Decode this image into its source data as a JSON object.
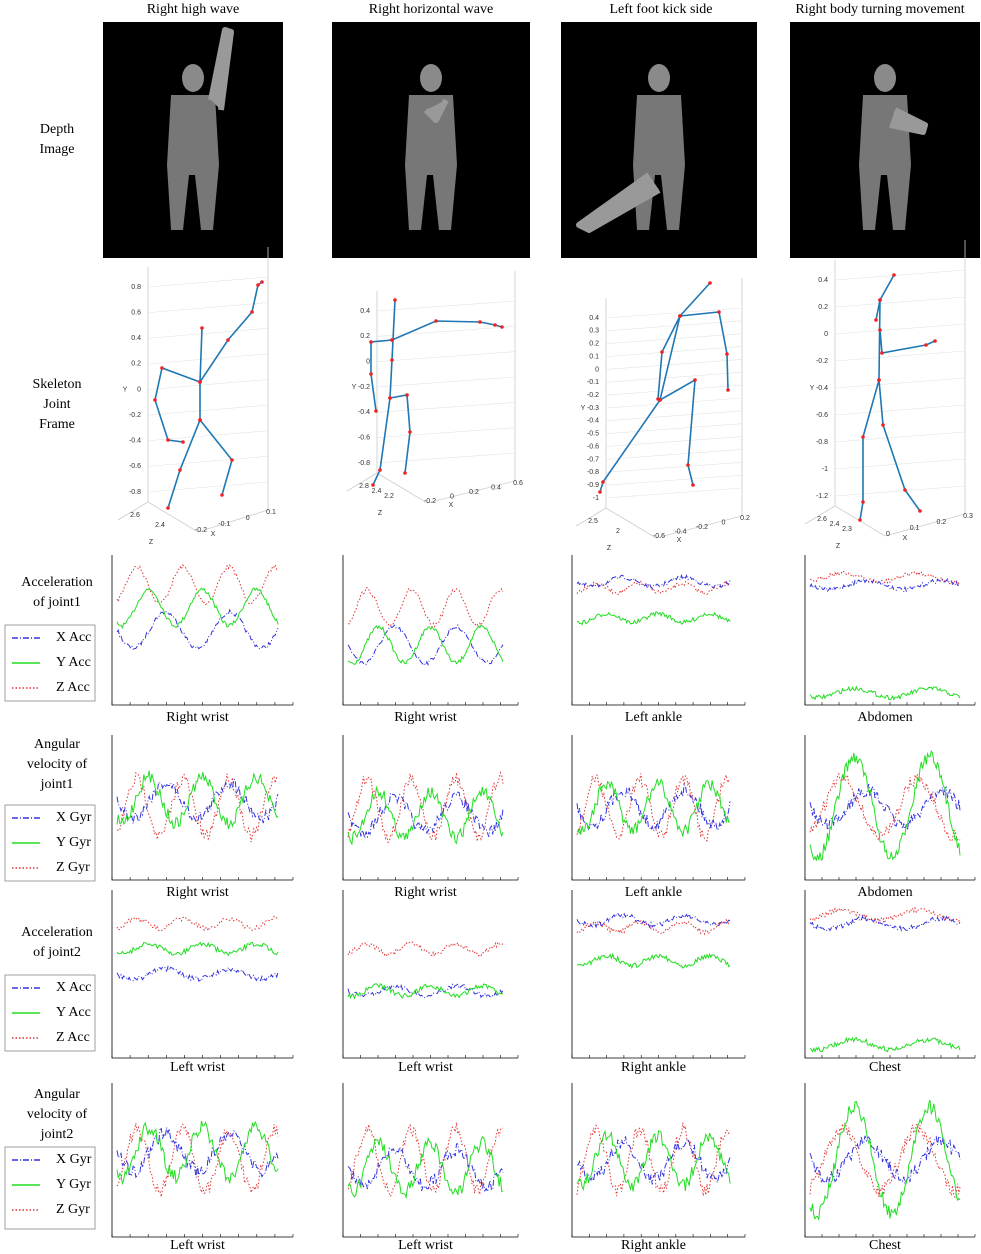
{
  "columns": [
    {
      "title": "Right high wave",
      "joint1": "Right wrist",
      "joint2": "Left wrist",
      "skeleton": {
        "yticks": [
          0.8,
          0.6,
          0.4,
          0.2,
          0,
          -0.2,
          -0.4,
          -0.6,
          -0.8
        ],
        "xticks": [
          0.1,
          0,
          -0.1,
          -0.2
        ],
        "zticks": [
          2.6,
          2.4
        ],
        "ylabel": "Y",
        "xlabel": "X",
        "zlabel": "Z"
      }
    },
    {
      "title": "Right horizontal wave",
      "joint1": "Right wrist",
      "joint2": "Left wrist",
      "skeleton": {
        "yticks": [
          0.4,
          0.2,
          0,
          -0.2,
          -0.4,
          -0.6,
          -0.8
        ],
        "xticks": [
          0.6,
          0.4,
          0.2,
          0,
          -0.2
        ],
        "zticks": [
          2.8,
          2.4,
          2.2
        ],
        "ylabel": "Y",
        "xlabel": "X",
        "zlabel": "Z"
      }
    },
    {
      "title": "Left foot kick side",
      "joint1": "Left ankle",
      "joint2": "Right ankle",
      "skeleton": {
        "yticks": [
          0.4,
          0.3,
          0.2,
          0.1,
          0,
          -0.1,
          -0.2,
          -0.3,
          -0.4,
          -0.5,
          -0.6,
          -0.7,
          -0.8,
          -0.9,
          -1
        ],
        "xticks": [
          0.2,
          0,
          -0.2,
          -0.4,
          -0.6
        ],
        "zticks": [
          2.5,
          2
        ],
        "ylabel": "Y",
        "xlabel": "X",
        "zlabel": "Z"
      }
    },
    {
      "title": "Right body turning movement",
      "joint1": "Abdomen",
      "joint2": "Chest",
      "skeleton": {
        "yticks": [
          0.4,
          0.2,
          0,
          -0.2,
          -0.4,
          -0.6,
          -0.8,
          -1,
          -1.2
        ],
        "xticks": [
          0.3,
          0.2,
          0.1,
          0
        ],
        "zticks": [
          2.6,
          2.4,
          2.3
        ],
        "ylabel": "Y",
        "xlabel": "X",
        "zlabel": "Z"
      }
    }
  ],
  "row_labels": [
    [
      "Depth",
      "Image"
    ],
    [
      "Skeleton",
      "Joint",
      "Frame"
    ],
    [
      "Acceleration",
      "of joint1"
    ],
    [
      "Angular",
      "velocity of",
      "joint1"
    ],
    [
      "Acceleration",
      "of joint2"
    ],
    [
      "Angular",
      "velocity of",
      "joint2"
    ]
  ],
  "legends": {
    "acc": [
      "X Acc",
      "Y Acc",
      "Z Acc"
    ],
    "gyr": [
      "X Gyr",
      "Y Gyr",
      "Z Gyr"
    ]
  }
}
